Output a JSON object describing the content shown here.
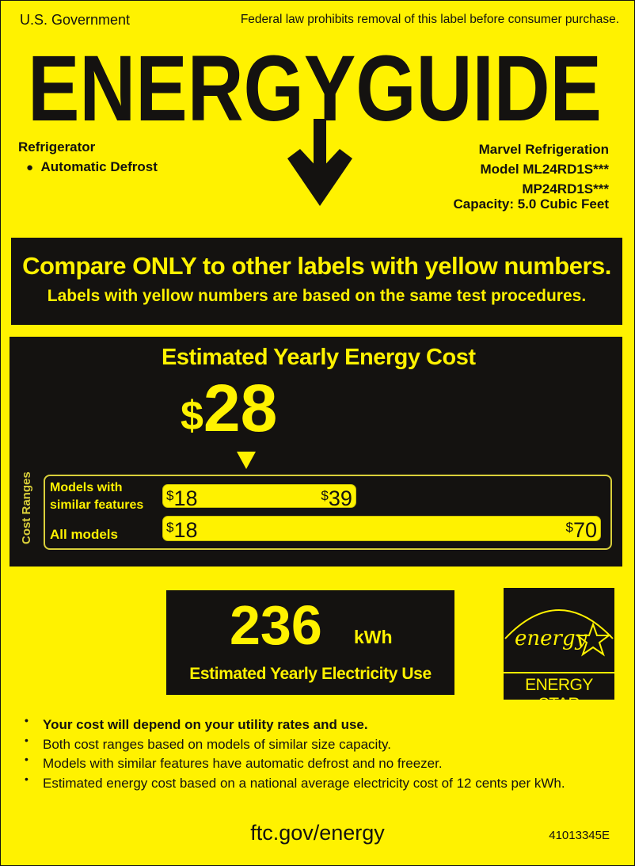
{
  "header": {
    "left": "U.S. Government",
    "right": "Federal law prohibits removal of this label before consumer purchase.",
    "title": "ENERGYGUIDE"
  },
  "product": {
    "type": "Refrigerator",
    "feature": "Automatic Defrost",
    "brand": "Marvel Refrigeration",
    "model": "Model ML24RD1S***",
    "model2": "MP24RD1S***",
    "capacity": "Capacity: 5.0 Cubic Feet"
  },
  "compare": {
    "headline": "Compare ONLY to other labels with yellow numbers.",
    "sub": "Labels with yellow numbers are based on the same test procedures."
  },
  "cost": {
    "heading": "Estimated Yearly Energy Cost",
    "currency": "$",
    "value": "28",
    "value_num": 28,
    "ranges_label": "Cost Ranges",
    "similar_label_1": "Models with",
    "similar_label_2": "similar features",
    "similar_min": "18",
    "similar_max": "39",
    "all_label": "All models",
    "all_min": "18",
    "all_max": "70"
  },
  "electricity": {
    "value": "236",
    "unit": "kWh",
    "label": "Estimated Yearly Electricity Use"
  },
  "energy_star": {
    "script": "energy",
    "label": "ENERGY STAR"
  },
  "notes": [
    "Your cost will depend on your utility rates and use.",
    "Both cost ranges based on models of similar size capacity.",
    "Models with similar features have automatic defrost and no freezer.",
    "Estimated energy cost based on a national average electricity cost of 12 cents per kWh."
  ],
  "footer": {
    "url": "ftc.gov/energy",
    "code": "41013345E"
  },
  "colors": {
    "yellow": "#fff200",
    "black": "#141210"
  }
}
